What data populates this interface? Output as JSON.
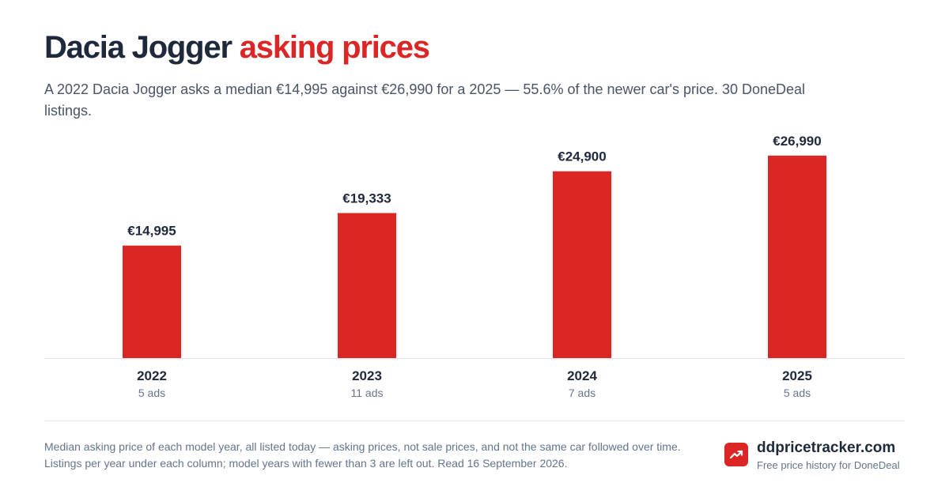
{
  "header": {
    "title_main": "Dacia Jogger",
    "title_accent": "asking prices",
    "subtitle": "A 2022 Dacia Jogger asks a median €14,995 against €26,990 for a 2025 — 55.6% of the newer car's price. 30 DoneDeal listings."
  },
  "chart_data": {
    "type": "bar",
    "categories": [
      "2022",
      "2023",
      "2024",
      "2025"
    ],
    "values": [
      14995,
      19333,
      24900,
      26990
    ],
    "value_labels": [
      "€14,995",
      "€19,333",
      "€24,900",
      "€26,990"
    ],
    "sublabels": [
      "5 ads",
      "11 ads",
      "7 ads",
      "5 ads"
    ],
    "ylim": [
      0,
      30000
    ],
    "grid": false,
    "bar_color": "#dc2626"
  },
  "footer": {
    "note": "Median asking price of each model year, all listed today — asking prices, not sale prices, and not the same car followed over time. Listings per year under each column; model years with fewer than 3 are left out. Read 16 September 2026.",
    "brand_name": "ddpricetracker.com",
    "brand_tagline": "Free price history for DoneDeal",
    "brand_icon": "trend-up-icon"
  }
}
